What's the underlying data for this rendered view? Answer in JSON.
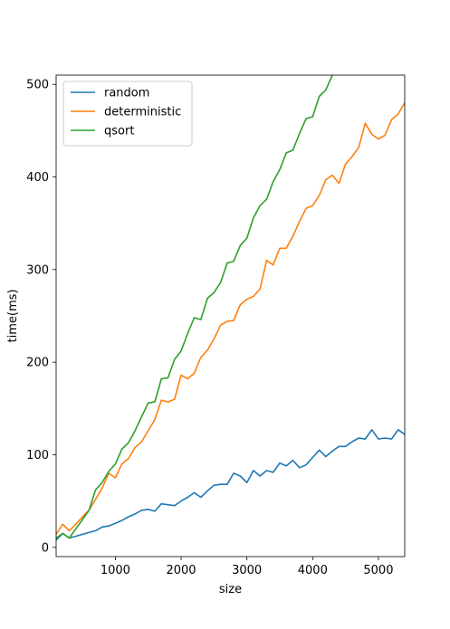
{
  "chart_data": {
    "type": "line",
    "title": "",
    "xlabel": "size",
    "ylabel": "time(ms)",
    "xlim": [
      100,
      5400
    ],
    "ylim": [
      -10,
      510
    ],
    "xticks": [
      1000,
      2000,
      3000,
      4000,
      5000
    ],
    "yticks": [
      0,
      100,
      200,
      300,
      400,
      500
    ],
    "grid": false,
    "legend_position": "top-left",
    "series": [
      {
        "name": "random",
        "color": "#1f77b4",
        "x": [
          100,
          200,
          300,
          400,
          500,
          600,
          700,
          800,
          900,
          1000,
          1100,
          1200,
          1300,
          1400,
          1500,
          1600,
          1700,
          1800,
          1900,
          2000,
          2100,
          2200,
          2300,
          2400,
          2500,
          2600,
          2700,
          2800,
          2900,
          3000,
          3100,
          3200,
          3300,
          3400,
          3500,
          3600,
          3700,
          3800,
          3900,
          4000,
          4100,
          4200,
          4300,
          4400,
          4500,
          4600,
          4700,
          4800,
          4900,
          5000,
          5100,
          5200,
          5300,
          5400
        ],
        "y": [
          8,
          15,
          10,
          12,
          14,
          16,
          18,
          22,
          23,
          26,
          29,
          33,
          36,
          40,
          41,
          39,
          47,
          46,
          45,
          50,
          54,
          59,
          54,
          61,
          67,
          68,
          68,
          80,
          77,
          70,
          83,
          77,
          83,
          81,
          91,
          88,
          94,
          86,
          89,
          97,
          105,
          98,
          104,
          109,
          109,
          114,
          118,
          117,
          127,
          117,
          118,
          117,
          127,
          122
        ]
      },
      {
        "name": "deterministic",
        "color": "#ff7f0e",
        "x": [
          100,
          200,
          300,
          400,
          500,
          600,
          700,
          800,
          900,
          1000,
          1100,
          1200,
          1300,
          1400,
          1500,
          1600,
          1700,
          1800,
          1900,
          2000,
          2100,
          2200,
          2300,
          2400,
          2500,
          2600,
          2700,
          2800,
          2900,
          3000,
          3100,
          3200,
          3300,
          3400,
          3500,
          3600,
          3700,
          3800,
          3900,
          4000,
          4100,
          4200,
          4300,
          4400,
          4500,
          4600,
          4700,
          4800,
          4900,
          5000,
          5100,
          5200,
          5300,
          5400
        ],
        "y": [
          14,
          25,
          18,
          25,
          33,
          40,
          52,
          64,
          80,
          75,
          90,
          96,
          108,
          114,
          126,
          138,
          159,
          157,
          160,
          186,
          182,
          188,
          205,
          213,
          225,
          240,
          244,
          245,
          262,
          268,
          271,
          279,
          310,
          305,
          323,
          323,
          336,
          352,
          366,
          369,
          380,
          397,
          402,
          393,
          414,
          422,
          432,
          458,
          446,
          441,
          445,
          462,
          468,
          480
        ]
      },
      {
        "name": "qsort",
        "color": "#2ca02c",
        "x": [
          100,
          200,
          300,
          400,
          500,
          600,
          700,
          800,
          900,
          1000,
          1100,
          1200,
          1300,
          1400,
          1500,
          1600,
          1700,
          1800,
          1900,
          2000,
          2100,
          2200,
          2300,
          2400,
          2500,
          2600,
          2700,
          2800,
          2900,
          3000,
          3100,
          3200,
          3300,
          3400,
          3500,
          3600,
          3700,
          3800,
          3900,
          4000,
          4100,
          4200,
          4300
        ],
        "y": [
          10,
          15,
          10,
          20,
          30,
          40,
          62,
          70,
          82,
          90,
          106,
          113,
          126,
          141,
          156,
          157,
          182,
          183,
          203,
          212,
          231,
          248,
          246,
          269,
          275,
          286,
          307,
          309,
          326,
          334,
          356,
          369,
          376,
          395,
          408,
          426,
          429,
          447,
          463,
          465,
          487,
          494,
          510
        ]
      }
    ]
  }
}
